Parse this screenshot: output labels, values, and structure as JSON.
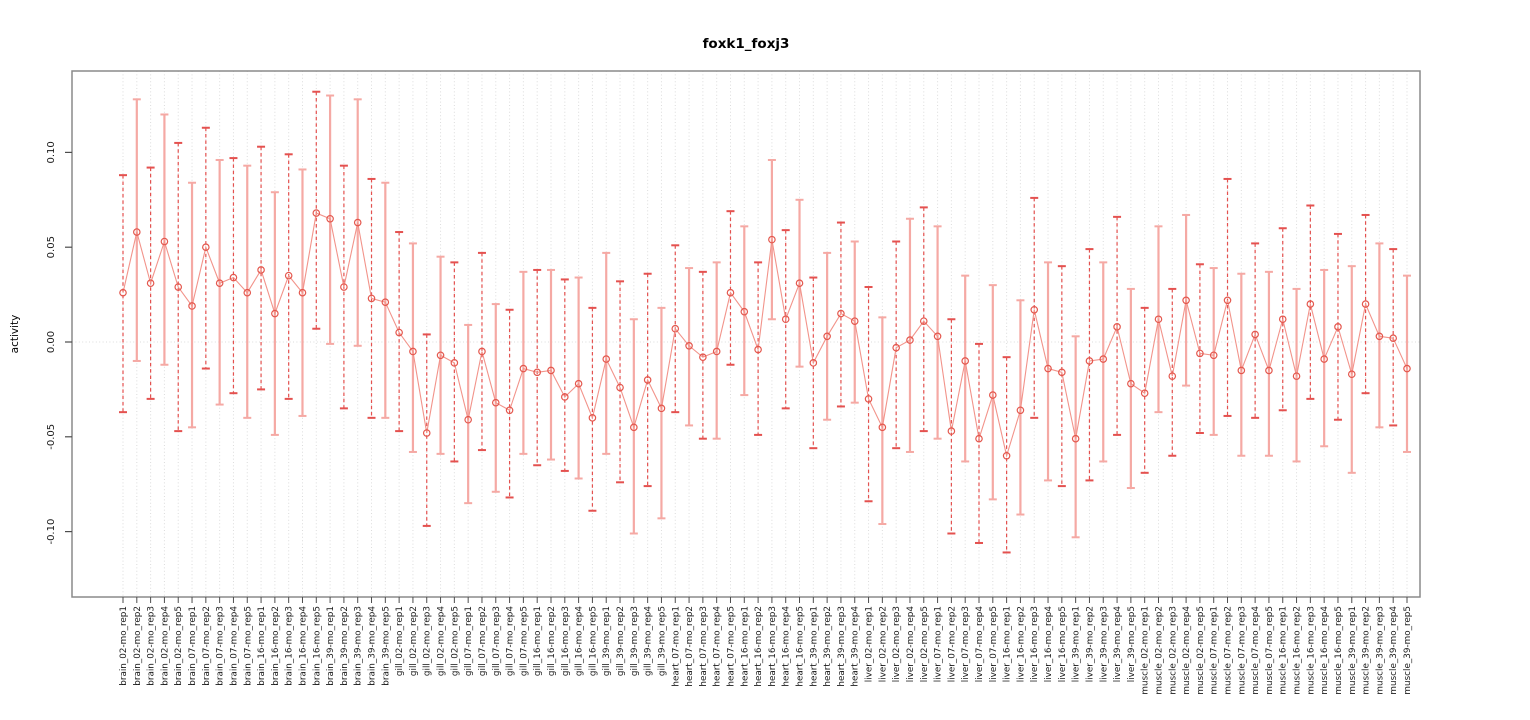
{
  "title": "foxk1_foxj3",
  "colors": {
    "point": "#e4574d",
    "line": "#f2938a",
    "bar_dashed": "#e4514f",
    "bar_solid": "#f5a9a4",
    "grid": "#dcdcdc",
    "axis_tick": "#4d4d4d",
    "box": "#8a8a8a",
    "text": "#1a1a1a"
  },
  "chart_data": {
    "type": "scatter",
    "title": "foxk1_foxj3",
    "xlabel": "",
    "ylabel": "activity",
    "ylim": [
      -0.1345,
      0.1429
    ],
    "yticks": [
      -0.1,
      -0.05,
      0.0,
      0.05,
      0.1
    ],
    "ytick_labels": [
      "-0.10",
      "-0.05",
      "0.00",
      "0.05",
      "0.10"
    ],
    "grid": "vertical dotted gridline at every category; dotted horizontal line at y=0; full box frame",
    "legend": "none",
    "marker": "open-circle",
    "error_bars": "per-point vertical CI with caps, alternating dashed red / solid pink",
    "categories": [
      "brain_02-mo_rep1",
      "brain_02-mo_rep2",
      "brain_02-mo_rep3",
      "brain_02-mo_rep4",
      "brain_02-mo_rep5",
      "brain_07-mo_rep1",
      "brain_07-mo_rep2",
      "brain_07-mo_rep3",
      "brain_07-mo_rep4",
      "brain_07-mo_rep5",
      "brain_16-mo_rep1",
      "brain_16-mo_rep2",
      "brain_16-mo_rep3",
      "brain_16-mo_rep4",
      "brain_16-mo_rep5",
      "brain_39-mo_rep1",
      "brain_39-mo_rep2",
      "brain_39-mo_rep3",
      "brain_39-mo_rep4",
      "brain_39-mo_rep5",
      "gill_02-mo_rep1",
      "gill_02-mo_rep2",
      "gill_02-mo_rep3",
      "gill_02-mo_rep4",
      "gill_02-mo_rep5",
      "gill_07-mo_rep1",
      "gill_07-mo_rep2",
      "gill_07-mo_rep3",
      "gill_07-mo_rep4",
      "gill_07-mo_rep5",
      "gill_16-mo_rep1",
      "gill_16-mo_rep2",
      "gill_16-mo_rep3",
      "gill_16-mo_rep4",
      "gill_16-mo_rep5",
      "gill_39-mo_rep1",
      "gill_39-mo_rep2",
      "gill_39-mo_rep3",
      "gill_39-mo_rep4",
      "gill_39-mo_rep5",
      "heart_07-mo_rep1",
      "heart_07-mo_rep2",
      "heart_07-mo_rep3",
      "heart_07-mo_rep4",
      "heart_07-mo_rep5",
      "heart_16-mo_rep1",
      "heart_16-mo_rep2",
      "heart_16-mo_rep3",
      "heart_16-mo_rep4",
      "heart_16-mo_rep5",
      "heart_39-mo_rep1",
      "heart_39-mo_rep2",
      "heart_39-mo_rep3",
      "heart_39-mo_rep4",
      "liver_02-mo_rep1",
      "liver_02-mo_rep2",
      "liver_02-mo_rep3",
      "liver_02-mo_rep4",
      "liver_02-mo_rep5",
      "liver_07-mo_rep1",
      "liver_07-mo_rep2",
      "liver_07-mo_rep3",
      "liver_07-mo_rep4",
      "liver_07-mo_rep5",
      "liver_16-mo_rep1",
      "liver_16-mo_rep2",
      "liver_16-mo_rep3",
      "liver_16-mo_rep4",
      "liver_16-mo_rep5",
      "liver_39-mo_rep1",
      "liver_39-mo_rep2",
      "liver_39-mo_rep3",
      "liver_39-mo_rep4",
      "liver_39-mo_rep5",
      "muscle_02-mo_rep1",
      "muscle_02-mo_rep2",
      "muscle_02-mo_rep3",
      "muscle_02-mo_rep4",
      "muscle_02-mo_rep5",
      "muscle_07-mo_rep1",
      "muscle_07-mo_rep2",
      "muscle_07-mo_rep3",
      "muscle_07-mo_rep4",
      "muscle_07-mo_rep5",
      "muscle_16-mo_rep1",
      "muscle_16-mo_rep2",
      "muscle_16-mo_rep3",
      "muscle_16-mo_rep4",
      "muscle_16-mo_rep5",
      "muscle_39-mo_rep1",
      "muscle_39-mo_rep2",
      "muscle_39-mo_rep3",
      "muscle_39-mo_rep4",
      "muscle_39-mo_rep5"
    ],
    "series": [
      {
        "name": "activity",
        "values": [
          0.026,
          0.058,
          0.031,
          0.053,
          0.029,
          0.019,
          0.05,
          0.031,
          0.034,
          0.026,
          0.038,
          0.015,
          0.035,
          0.026,
          0.068,
          0.065,
          0.029,
          0.063,
          0.023,
          0.021,
          0.005,
          -0.005,
          -0.048,
          -0.007,
          -0.011,
          -0.041,
          -0.005,
          -0.032,
          -0.036,
          -0.014,
          -0.016,
          -0.015,
          -0.029,
          -0.022,
          -0.04,
          -0.009,
          -0.024,
          -0.045,
          -0.02,
          -0.035,
          0.007,
          -0.002,
          -0.008,
          -0.005,
          0.026,
          0.016,
          -0.004,
          0.054,
          0.012,
          0.031,
          -0.011,
          0.003,
          0.015,
          0.011,
          -0.03,
          -0.045,
          -0.003,
          0.001,
          0.011,
          0.003,
          -0.047,
          -0.01,
          -0.051,
          -0.028,
          -0.06,
          -0.036,
          0.017,
          -0.014,
          -0.016,
          -0.051,
          -0.01,
          -0.009,
          0.008,
          -0.022,
          -0.027,
          0.012,
          -0.018,
          0.022,
          -0.006,
          -0.007,
          0.022,
          -0.015,
          0.004,
          -0.015,
          0.012,
          -0.018,
          0.02,
          -0.009,
          0.008,
          -0.017,
          0.02,
          0.003,
          0.002,
          -0.014
        ],
        "ci_low": [
          -0.037,
          -0.01,
          -0.03,
          -0.012,
          -0.047,
          -0.045,
          -0.014,
          -0.033,
          -0.027,
          -0.04,
          -0.025,
          -0.049,
          -0.03,
          -0.039,
          0.007,
          -0.001,
          -0.035,
          -0.002,
          -0.04,
          -0.04,
          -0.047,
          -0.058,
          -0.097,
          -0.059,
          -0.063,
          -0.085,
          -0.057,
          -0.079,
          -0.082,
          -0.059,
          -0.065,
          -0.062,
          -0.068,
          -0.072,
          -0.089,
          -0.059,
          -0.074,
          -0.101,
          -0.076,
          -0.093,
          -0.037,
          -0.044,
          -0.051,
          -0.051,
          -0.012,
          -0.028,
          -0.049,
          0.012,
          -0.035,
          -0.013,
          -0.056,
          -0.041,
          -0.034,
          -0.032,
          -0.084,
          -0.096,
          -0.056,
          -0.058,
          -0.047,
          -0.051,
          -0.101,
          -0.063,
          -0.106,
          -0.083,
          -0.111,
          -0.091,
          -0.04,
          -0.073,
          -0.076,
          -0.103,
          -0.073,
          -0.063,
          -0.049,
          -0.077,
          -0.069,
          -0.037,
          -0.06,
          -0.023,
          -0.048,
          -0.049,
          -0.039,
          -0.06,
          -0.04,
          -0.06,
          -0.036,
          -0.063,
          -0.03,
          -0.055,
          -0.041,
          -0.069,
          -0.027,
          -0.045,
          -0.044,
          -0.058
        ],
        "ci_high": [
          0.088,
          0.128,
          0.092,
          0.12,
          0.105,
          0.084,
          0.113,
          0.096,
          0.097,
          0.093,
          0.103,
          0.079,
          0.099,
          0.091,
          0.132,
          0.13,
          0.093,
          0.128,
          0.086,
          0.084,
          0.058,
          0.052,
          0.004,
          0.045,
          0.042,
          0.009,
          0.047,
          0.02,
          0.017,
          0.037,
          0.038,
          0.038,
          0.033,
          0.034,
          0.018,
          0.047,
          0.032,
          0.012,
          0.036,
          0.018,
          0.051,
          0.039,
          0.037,
          0.042,
          0.069,
          0.061,
          0.042,
          0.096,
          0.059,
          0.075,
          0.034,
          0.047,
          0.063,
          0.053,
          0.029,
          0.013,
          0.053,
          0.065,
          0.071,
          0.061,
          0.012,
          0.035,
          -0.001,
          0.03,
          -0.008,
          0.022,
          0.076,
          0.042,
          0.04,
          0.003,
          0.049,
          0.042,
          0.066,
          0.028,
          0.018,
          0.061,
          0.028,
          0.067,
          0.041,
          0.039,
          0.086,
          0.036,
          0.052,
          0.037,
          0.06,
          0.028,
          0.072,
          0.038,
          0.057,
          0.04,
          0.067,
          0.052,
          0.049,
          0.035
        ]
      }
    ]
  }
}
